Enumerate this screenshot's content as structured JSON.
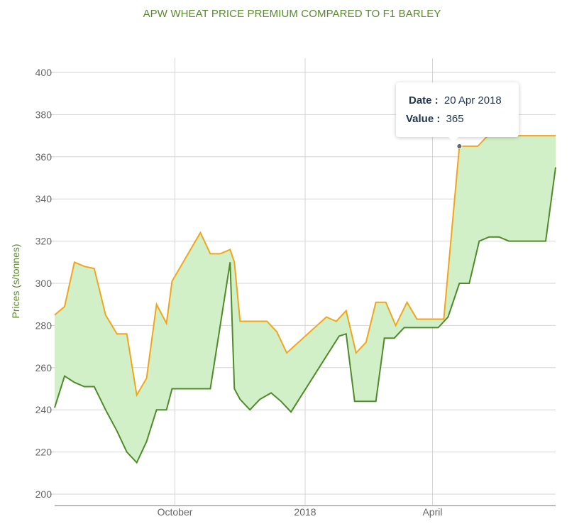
{
  "title": "APW WHEAT PRICE PREMIUM COMPARED TO F1 BARLEY",
  "tooltip": {
    "date_key": "Date :",
    "date_value": "20 Apr 2018",
    "value_key": "Value :",
    "value_value": "365"
  },
  "colors": {
    "wheat_line": "#f2a51a",
    "barley_line": "#4f8a2b",
    "fill": "#d2f0c8",
    "grid": "#d6d6d6",
    "title": "#5a8a2e"
  },
  "chart_data": {
    "type": "area",
    "title": "APW WHEAT PRICE PREMIUM COMPARED TO F1 BARLEY",
    "xlabel": "",
    "ylabel": "Prices (s/tonnes)",
    "ylim": [
      195,
      405
    ],
    "yticks": [
      200,
      220,
      240,
      260,
      280,
      300,
      320,
      340,
      360,
      380,
      400
    ],
    "xticks": [
      {
        "label": "October",
        "date": "2017-10-01"
      },
      {
        "label": "2018",
        "date": "2018-01-01"
      },
      {
        "label": "April",
        "date": "2018-04-01"
      }
    ],
    "xlim": [
      "2017-07-08",
      "2018-06-27"
    ],
    "grid": true,
    "series": [
      {
        "points": [
          [
            "2017-07-08",
            285
          ],
          [
            "2017-07-15",
            289
          ],
          [
            "2017-07-22",
            310
          ],
          [
            "2017-07-29",
            308
          ],
          [
            "2017-08-05",
            307
          ],
          [
            "2017-08-13",
            285
          ],
          [
            "2017-08-21",
            276
          ],
          [
            "2017-08-28",
            276
          ],
          [
            "2017-09-04",
            247
          ],
          [
            "2017-09-11",
            255
          ],
          [
            "2017-09-18",
            290
          ],
          [
            "2017-09-25",
            281
          ],
          [
            "2017-09-29",
            301
          ],
          [
            "2017-10-19",
            324
          ],
          [
            "2017-10-26",
            314
          ],
          [
            "2017-11-02",
            314
          ],
          [
            "2017-11-09",
            316
          ],
          [
            "2017-11-12",
            310
          ],
          [
            "2017-11-16",
            282
          ],
          [
            "2017-12-05",
            282
          ],
          [
            "2017-12-12",
            277
          ],
          [
            "2017-12-19",
            267
          ],
          [
            "2018-01-16",
            284
          ],
          [
            "2018-01-23",
            282
          ],
          [
            "2018-01-30",
            287
          ],
          [
            "2018-02-06",
            267
          ],
          [
            "2018-02-13",
            272
          ],
          [
            "2018-02-20",
            291
          ],
          [
            "2018-02-27",
            291
          ],
          [
            "2018-03-06",
            280
          ],
          [
            "2018-03-14",
            291
          ],
          [
            "2018-03-21",
            283
          ],
          [
            "2018-04-09",
            283
          ],
          [
            "2018-04-20",
            365
          ],
          [
            "2018-05-03",
            365
          ],
          [
            "2018-05-10",
            370
          ],
          [
            "2018-06-27",
            370
          ]
        ]
      },
      {
        "points": [
          [
            "2017-07-08",
            241
          ],
          [
            "2017-07-15",
            256
          ],
          [
            "2017-07-22",
            253
          ],
          [
            "2017-07-29",
            251
          ],
          [
            "2017-08-05",
            251
          ],
          [
            "2017-08-13",
            240
          ],
          [
            "2017-08-21",
            230
          ],
          [
            "2017-08-28",
            220
          ],
          [
            "2017-09-04",
            215
          ],
          [
            "2017-09-11",
            225
          ],
          [
            "2017-09-18",
            240
          ],
          [
            "2017-09-25",
            240
          ],
          [
            "2017-09-29",
            250
          ],
          [
            "2017-10-26",
            250
          ],
          [
            "2017-11-09",
            310
          ],
          [
            "2017-11-12",
            250
          ],
          [
            "2017-11-16",
            245
          ],
          [
            "2017-11-23",
            240
          ],
          [
            "2017-11-30",
            245
          ],
          [
            "2017-12-08",
            248
          ],
          [
            "2017-12-15",
            244
          ],
          [
            "2017-12-22",
            239
          ],
          [
            "2018-01-25",
            275
          ],
          [
            "2018-01-30",
            276
          ],
          [
            "2018-02-05",
            244
          ],
          [
            "2018-02-20",
            244
          ],
          [
            "2018-02-26",
            274
          ],
          [
            "2018-03-05",
            274
          ],
          [
            "2018-03-12",
            279
          ],
          [
            "2018-04-05",
            279
          ],
          [
            "2018-04-12",
            284
          ],
          [
            "2018-04-20",
            300
          ],
          [
            "2018-04-27",
            300
          ],
          [
            "2018-05-04",
            320
          ],
          [
            "2018-05-11",
            322
          ],
          [
            "2018-05-18",
            322
          ],
          [
            "2018-05-25",
            320
          ],
          [
            "2018-06-20",
            320
          ],
          [
            "2018-06-27",
            355
          ]
        ]
      }
    ],
    "highlight": {
      "date": "2018-04-20",
      "value": 365
    }
  }
}
